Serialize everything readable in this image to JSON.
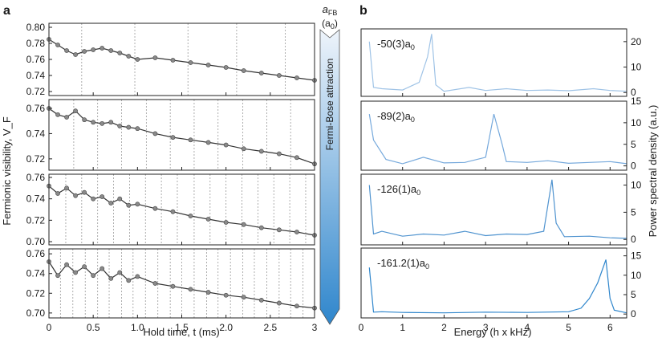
{
  "panel_labels": {
    "a": "a",
    "b": "b"
  },
  "arrow": {
    "title": "a",
    "title_sub": "FB",
    "unit_open": "(a",
    "unit_sub": "0",
    "unit_close": ")",
    "text": "Fermi-Bose attraction",
    "gradient_top": "#eef4fb",
    "gradient_bottom": "#2f86cc"
  },
  "chart_data": [
    {
      "panel": "a",
      "type": "line",
      "xlabel": "Hold time, t (ms)",
      "ylabel": "Fermionic visibility, V_F",
      "xlim": [
        0,
        3
      ],
      "xticks": [
        0,
        0.5,
        1,
        1.5,
        2,
        2.5,
        3
      ],
      "xtick_labels": [
        "0",
        "0.5",
        "1.0",
        "1.5",
        "2.0",
        "2.5",
        "3"
      ],
      "marker_color": "#8a8a8a",
      "line_color": "#333333",
      "subplots": [
        {
          "ylim": [
            0.715,
            0.805
          ],
          "yticks": [
            0.72,
            0.74,
            0.76,
            0.78,
            0.8
          ],
          "ytick_labels": [
            "0.72",
            "0.74",
            "0.76",
            "0.78",
            "0.80"
          ],
          "guides": [
            0.37,
            0.97,
            1.57,
            2.12,
            2.67
          ],
          "x": [
            0.0,
            0.1,
            0.2,
            0.3,
            0.4,
            0.5,
            0.6,
            0.7,
            0.8,
            0.9,
            1.0,
            1.2,
            1.4,
            1.6,
            1.8,
            2.0,
            2.2,
            2.4,
            2.6,
            2.8,
            3.0
          ],
          "y": [
            0.785,
            0.778,
            0.771,
            0.766,
            0.77,
            0.772,
            0.774,
            0.771,
            0.768,
            0.764,
            0.76,
            0.762,
            0.759,
            0.756,
            0.753,
            0.75,
            0.746,
            0.743,
            0.74,
            0.737,
            0.734
          ]
        },
        {
          "ylim": [
            0.711,
            0.767
          ],
          "yticks": [
            0.72,
            0.74,
            0.76
          ],
          "ytick_labels": [
            "0.72",
            "0.74",
            "0.76"
          ],
          "guides": [
            0.28,
            0.55,
            0.82,
            1.1,
            1.37,
            1.64,
            1.91,
            2.19,
            2.46,
            2.73
          ],
          "x": [
            0.0,
            0.1,
            0.2,
            0.3,
            0.4,
            0.5,
            0.6,
            0.7,
            0.8,
            0.9,
            1.0,
            1.2,
            1.4,
            1.6,
            1.8,
            2.0,
            2.2,
            2.4,
            2.6,
            2.8,
            3.0
          ],
          "y": [
            0.76,
            0.755,
            0.753,
            0.758,
            0.751,
            0.749,
            0.748,
            0.749,
            0.746,
            0.745,
            0.744,
            0.74,
            0.737,
            0.735,
            0.733,
            0.731,
            0.728,
            0.726,
            0.724,
            0.721,
            0.716
          ]
        },
        {
          "ylim": [
            0.697,
            0.763
          ],
          "yticks": [
            0.7,
            0.72,
            0.74,
            0.76
          ],
          "ytick_labels": [
            "0.70",
            "0.72",
            "0.74",
            "0.76"
          ],
          "guides": [
            0.19,
            0.37,
            0.55,
            0.73,
            0.91,
            1.09,
            1.27,
            1.45,
            1.64,
            1.82,
            2.0,
            2.18,
            2.36,
            2.54,
            2.72,
            2.9
          ],
          "x": [
            0.0,
            0.1,
            0.2,
            0.3,
            0.4,
            0.5,
            0.6,
            0.7,
            0.8,
            0.9,
            1.0,
            1.2,
            1.4,
            1.6,
            1.8,
            2.0,
            2.2,
            2.4,
            2.6,
            2.8,
            3.0
          ],
          "y": [
            0.752,
            0.745,
            0.75,
            0.743,
            0.746,
            0.74,
            0.742,
            0.736,
            0.74,
            0.734,
            0.735,
            0.731,
            0.728,
            0.724,
            0.721,
            0.718,
            0.716,
            0.713,
            0.711,
            0.709,
            0.706
          ]
        },
        {
          "ylim": [
            0.695,
            0.765
          ],
          "yticks": [
            0.7,
            0.72,
            0.74,
            0.76
          ],
          "ytick_labels": [
            "0.70",
            "0.72",
            "0.74",
            "0.76"
          ],
          "guides": [
            0.13,
            0.27,
            0.41,
            0.55,
            0.68,
            0.82,
            0.95,
            1.09,
            1.23,
            1.37,
            1.5,
            1.64,
            1.78,
            1.91,
            2.05,
            2.19,
            2.32,
            2.46,
            2.6,
            2.73,
            2.87
          ],
          "x": [
            0.0,
            0.1,
            0.2,
            0.3,
            0.4,
            0.5,
            0.6,
            0.7,
            0.8,
            0.9,
            1.0,
            1.2,
            1.4,
            1.6,
            1.8,
            2.0,
            2.2,
            2.4,
            2.6,
            2.8,
            3.0
          ],
          "y": [
            0.752,
            0.738,
            0.749,
            0.741,
            0.747,
            0.738,
            0.745,
            0.735,
            0.741,
            0.733,
            0.737,
            0.73,
            0.727,
            0.724,
            0.721,
            0.718,
            0.716,
            0.713,
            0.71,
            0.707,
            0.705
          ]
        }
      ]
    },
    {
      "panel": "b",
      "type": "line",
      "xlabel": "Energy (h x kHz)",
      "ylabel": "Power spectral density (a.u.)",
      "xlim": [
        0,
        6.4
      ],
      "xticks": [
        0,
        1,
        2,
        3,
        4,
        5,
        6
      ],
      "xtick_labels": [
        "0",
        "1",
        "2",
        "3",
        "4",
        "5",
        "6"
      ],
      "subplots": [
        {
          "annotation": "-50(3)a",
          "annotation_sub": "0",
          "color": "#9fc3e6",
          "ylim": [
            -1.5,
            25
          ],
          "yticks": [
            0,
            10,
            20
          ],
          "ytick_labels": [
            "0",
            "10",
            "20"
          ],
          "x": [
            0.2,
            0.3,
            0.5,
            1.0,
            1.4,
            1.6,
            1.7,
            1.8,
            2.0,
            2.6,
            3.0,
            3.5,
            4.0,
            4.5,
            5.0,
            5.6,
            6.0,
            6.4
          ],
          "y": [
            20,
            2,
            1.5,
            1,
            4,
            14,
            23,
            3,
            0.5,
            2,
            0.8,
            1.5,
            0.8,
            1,
            0.7,
            1.5,
            0.8,
            0.5
          ]
        },
        {
          "annotation": "-89(2)a",
          "annotation_sub": "0",
          "color": "#76a9dc",
          "ylim": [
            -1,
            15
          ],
          "yticks": [
            0,
            5,
            10,
            15
          ],
          "ytick_labels": [
            "0",
            "5",
            "10",
            "15"
          ],
          "x": [
            0.2,
            0.3,
            0.6,
            1.0,
            1.5,
            2.0,
            2.5,
            3.0,
            3.2,
            3.4,
            3.5,
            4.0,
            4.5,
            5.0,
            5.5,
            6.0,
            6.4
          ],
          "y": [
            12,
            6,
            1.5,
            0.5,
            2,
            0.7,
            0.8,
            2,
            12,
            5,
            1,
            0.8,
            1.2,
            0.6,
            0.8,
            1,
            0.5
          ]
        },
        {
          "annotation": "-126(1)a",
          "annotation_sub": "0",
          "color": "#4f93cf",
          "ylim": [
            -1,
            12
          ],
          "yticks": [
            0,
            5,
            10
          ],
          "ytick_labels": [
            "0",
            "5",
            "10"
          ],
          "x": [
            0.2,
            0.3,
            0.5,
            1.0,
            1.5,
            2.0,
            2.5,
            3.0,
            3.5,
            4.0,
            4.4,
            4.6,
            4.7,
            4.9,
            5.5,
            6.0,
            6.4
          ],
          "y": [
            10,
            1,
            1.5,
            0.6,
            1,
            0.8,
            1.5,
            0.7,
            1,
            0.9,
            1.5,
            11,
            3,
            0.5,
            0.6,
            0.3,
            0.2
          ]
        },
        {
          "annotation": "-161.2(1)a",
          "annotation_sub": "0",
          "color": "#2f86cc",
          "ylim": [
            -1,
            17
          ],
          "yticks": [
            0,
            5,
            10,
            15
          ],
          "ytick_labels": [
            "0",
            "5",
            "10",
            "15"
          ],
          "x": [
            0.2,
            0.3,
            0.5,
            1.0,
            2.0,
            3.0,
            4.0,
            5.0,
            5.3,
            5.5,
            5.7,
            5.9,
            6.0,
            6.1,
            6.4
          ],
          "y": [
            12,
            0.5,
            0.6,
            0.4,
            0.3,
            0.5,
            0.4,
            0.6,
            1.5,
            4,
            8,
            14,
            4,
            1,
            0.3
          ]
        }
      ]
    }
  ]
}
